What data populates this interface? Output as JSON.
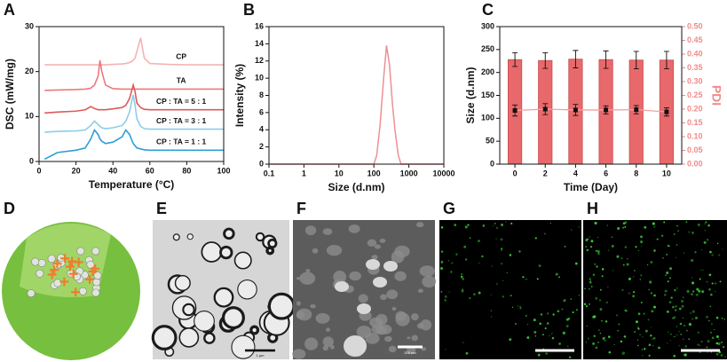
{
  "chart_data": [
    {
      "type": "line",
      "label": "A",
      "xlabel": "Temperature (°C)",
      "ylabel": "DSC (mW/mg)",
      "xlim": [
        0,
        100
      ],
      "xticks": [
        0,
        20,
        40,
        60,
        80,
        100
      ],
      "ylim": [
        0,
        30
      ],
      "yticks": [
        0,
        10,
        20,
        30
      ],
      "x": [
        3,
        10,
        20,
        25,
        28,
        30,
        32,
        33,
        34,
        36,
        40,
        45,
        47,
        49,
        50,
        51,
        52,
        53,
        55,
        57,
        60,
        70,
        80,
        90,
        100
      ],
      "series": [
        {
          "name": "CP",
          "color": "#f4b3b3",
          "values": [
            21.5,
            21.5,
            21.5,
            21.5,
            21.5,
            21.5,
            21.5,
            21.5,
            21.5,
            21.5,
            21.6,
            21.7,
            21.8,
            22,
            22.2,
            22.5,
            23,
            24.5,
            27.5,
            23,
            21.8,
            21.6,
            21.5,
            21.5,
            21.5
          ]
        },
        {
          "name": "TA",
          "color": "#ea7a7d",
          "values": [
            15.8,
            15.9,
            16,
            16.1,
            16.3,
            17,
            19,
            22.5,
            20,
            17,
            16.2,
            16.1,
            16.1,
            16.1,
            16.1,
            16.1,
            16.1,
            16.1,
            16.1,
            16.1,
            16.1,
            16.1,
            16.1,
            16.1,
            16.1
          ]
        },
        {
          "name": "CP : TA = 5 : 1",
          "color": "#dd5a5a",
          "values": [
            10.8,
            11,
            11.2,
            11.5,
            12.2,
            11.8,
            11.5,
            11.5,
            11.5,
            11.5,
            11.7,
            12,
            12.5,
            14,
            15.5,
            17,
            15.5,
            13,
            12,
            11.6,
            11.5,
            11.5,
            11.5,
            11.5,
            11.5
          ]
        },
        {
          "name": "CP : TA = 3 : 1",
          "color": "#8ecde8",
          "values": [
            6.5,
            6.7,
            6.8,
            7,
            8,
            9,
            8.2,
            7.8,
            7.5,
            7.3,
            7.5,
            8,
            9,
            11,
            13,
            14.8,
            12.5,
            9.5,
            7.8,
            7.3,
            7.2,
            7.2,
            7.2,
            7.2,
            7.2
          ]
        },
        {
          "name": "CP : TA = 1 : 1",
          "color": "#2c9fd6",
          "values": [
            0.5,
            2,
            2.5,
            3,
            5,
            7,
            6,
            5,
            4.5,
            4,
            4.3,
            5.5,
            7,
            6,
            5,
            4,
            3.5,
            3,
            2.8,
            2.6,
            2.5,
            2.5,
            2.5,
            2.5,
            2.5
          ]
        }
      ]
    },
    {
      "type": "line",
      "label": "B",
      "xlabel": "Size (d.nm)",
      "ylabel": "Intensity (%)",
      "log_x": true,
      "xlim": [
        0.1,
        10000
      ],
      "xticks": [
        0.1,
        1,
        10,
        100,
        1000,
        10000
      ],
      "ylim": [
        0,
        16
      ],
      "yticks": [
        0,
        2,
        4,
        6,
        8,
        10,
        12,
        14,
        16
      ],
      "color": "#ee8f92",
      "x": [
        0.1,
        1,
        10,
        100,
        120,
        150,
        190,
        230,
        280,
        340,
        400,
        500,
        600,
        10000
      ],
      "values": [
        0,
        0,
        0,
        0,
        1,
        4.5,
        10,
        13.8,
        11.5,
        7,
        4,
        1,
        0,
        0
      ]
    },
    {
      "type": "bar",
      "label": "C",
      "xlabel": "Time (Day)",
      "ylabel": "Size (d.nm)",
      "y2label": "PDI",
      "y2color": "#ef8a8a",
      "xlim": [
        -1,
        11
      ],
      "xticks": [
        0,
        2,
        4,
        6,
        8,
        10
      ],
      "ylim": [
        0,
        300
      ],
      "yticks": [
        0,
        50,
        100,
        150,
        200,
        250,
        300
      ],
      "y2lim": [
        0,
        0.5
      ],
      "y2ticks": [
        {
          "value": 0,
          "label": "0.00"
        },
        0.05,
        {
          "value": 0.1,
          "label": "0.10"
        },
        0.15,
        {
          "value": 0.2,
          "label": "0.20"
        },
        0.25,
        {
          "value": 0.3,
          "label": "0.30"
        },
        0.35,
        {
          "value": 0.4,
          "label": "0.40"
        },
        0.45,
        {
          "value": 0.5,
          "label": "0.50"
        }
      ],
      "x": [
        0,
        2,
        4,
        6,
        8,
        10
      ],
      "series": [
        {
          "type": "bar",
          "color": "#e8696b",
          "values": [
            228,
            226,
            229,
            228,
            227,
            227
          ],
          "errors": [
            15,
            17,
            19,
            19,
            19,
            19
          ]
        },
        {
          "type": "line",
          "axis": "y2",
          "color": "#f2a0a2",
          "values": [
            0.195,
            0.2,
            0.197,
            0.197,
            0.198,
            0.19
          ],
          "errors": [
            0.02,
            0.02,
            0.02,
            0.015,
            0.015,
            0.015
          ]
        }
      ]
    }
  ],
  "image_panels": [
    {
      "label": "D"
    },
    {
      "label": "E",
      "scale_bar": "1 μm"
    },
    {
      "label": "F",
      "scale_bar": "200 nm"
    },
    {
      "label": "G"
    },
    {
      "label": "H"
    }
  ]
}
